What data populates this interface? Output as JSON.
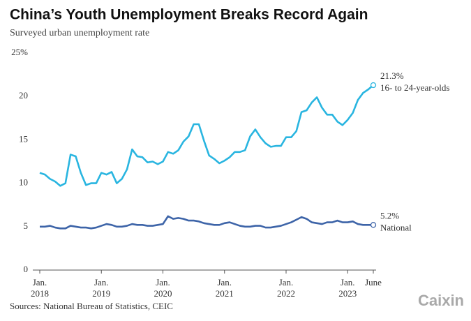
{
  "chart_data": {
    "type": "line",
    "title": "China’s Youth Unemployment Breaks Record Again",
    "subtitle": "Surveyed urban unemployment rate",
    "source": "Sources: National Bureau of Statistics, CEIC",
    "logo": "Caixin",
    "categories": [
      "Jan. 2018",
      null,
      null,
      null,
      null,
      null,
      null,
      null,
      null,
      null,
      null,
      null,
      "Jan. 2019",
      null,
      null,
      null,
      null,
      null,
      null,
      null,
      null,
      null,
      null,
      null,
      "Jan. 2020",
      null,
      null,
      null,
      null,
      null,
      null,
      null,
      null,
      null,
      null,
      null,
      "Jan. 2021",
      null,
      null,
      null,
      null,
      null,
      null,
      null,
      null,
      null,
      null,
      null,
      "Jan. 2022",
      null,
      null,
      null,
      null,
      null,
      null,
      null,
      null,
      null,
      null,
      null,
      "Jan. 2023",
      null,
      null,
      null,
      null,
      "June"
    ],
    "series": [
      {
        "name": "16- to 24-year-olds",
        "color": "#29b5e0",
        "values": [
          11.2,
          11.0,
          10.5,
          10.2,
          9.7,
          10.0,
          13.3,
          13.1,
          11.2,
          9.8,
          10.0,
          10.0,
          11.2,
          11.0,
          11.3,
          10.0,
          10.5,
          11.6,
          13.9,
          13.1,
          13.0,
          12.4,
          12.5,
          12.2,
          12.5,
          13.6,
          13.4,
          13.8,
          14.8,
          15.4,
          16.8,
          16.8,
          14.9,
          13.2,
          12.8,
          12.3,
          12.6,
          13.0,
          13.6,
          13.6,
          13.8,
          15.4,
          16.2,
          15.3,
          14.6,
          14.2,
          14.3,
          14.3,
          15.3,
          15.3,
          16.0,
          18.2,
          18.4,
          19.3,
          19.9,
          18.7,
          17.9,
          17.9,
          17.1,
          16.7,
          17.3,
          18.1,
          19.6,
          20.4,
          20.8,
          21.3
        ],
        "value_labels": [
          null,
          null,
          null,
          null,
          null,
          null,
          null,
          null,
          null,
          null,
          null,
          null,
          null,
          null,
          null,
          null,
          null,
          null,
          null,
          null,
          null,
          null,
          null,
          null,
          null,
          null,
          null,
          null,
          null,
          null,
          null,
          null,
          null,
          null,
          null,
          null,
          null,
          null,
          null,
          null,
          null,
          null,
          null,
          null,
          null,
          null,
          null,
          null,
          null,
          null,
          null,
          null,
          null,
          null,
          null,
          null,
          null,
          null,
          null,
          null,
          null,
          null,
          null,
          null,
          null,
          "21.3%"
        ]
      },
      {
        "name": "National",
        "color": "#3d64a8",
        "values": [
          5.0,
          5.0,
          5.1,
          4.9,
          4.8,
          4.8,
          5.1,
          5.0,
          4.9,
          4.9,
          4.8,
          4.9,
          5.1,
          5.3,
          5.2,
          5.0,
          5.0,
          5.1,
          5.3,
          5.2,
          5.2,
          5.1,
          5.1,
          5.2,
          5.3,
          6.2,
          5.9,
          6.0,
          5.9,
          5.7,
          5.7,
          5.6,
          5.4,
          5.3,
          5.2,
          5.2,
          5.4,
          5.5,
          5.3,
          5.1,
          5.0,
          5.0,
          5.1,
          5.1,
          4.9,
          4.9,
          5.0,
          5.1,
          5.3,
          5.5,
          5.8,
          6.1,
          5.9,
          5.5,
          5.4,
          5.3,
          5.5,
          5.5,
          5.7,
          5.5,
          5.5,
          5.6,
          5.3,
          5.2,
          5.2,
          5.2
        ],
        "value_labels": [
          null,
          null,
          null,
          null,
          null,
          null,
          null,
          null,
          null,
          null,
          null,
          null,
          null,
          null,
          null,
          null,
          null,
          null,
          null,
          null,
          null,
          null,
          null,
          null,
          null,
          null,
          null,
          null,
          null,
          null,
          null,
          null,
          null,
          null,
          null,
          null,
          null,
          null,
          null,
          null,
          null,
          null,
          null,
          null,
          null,
          null,
          null,
          null,
          null,
          null,
          null,
          null,
          null,
          null,
          null,
          null,
          null,
          null,
          null,
          null,
          null,
          null,
          null,
          null,
          null,
          "5.2%"
        ]
      }
    ],
    "ylim": [
      0,
      25
    ],
    "yticks": [
      0,
      5,
      10,
      15,
      20,
      {
        "value": 25,
        "label": "25%"
      }
    ],
    "grid": false
  }
}
